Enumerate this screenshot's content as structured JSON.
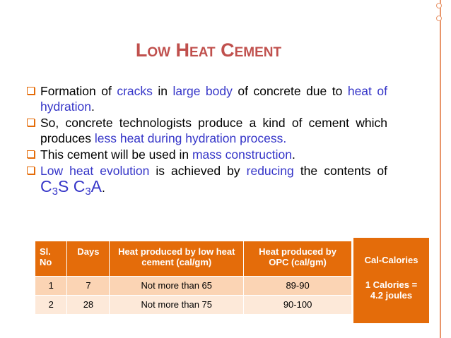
{
  "title": "Low Heat Cement",
  "bullets": [
    {
      "segments": [
        {
          "text": "Formation of "
        },
        {
          "text": "cracks",
          "color": "#3535c8"
        },
        {
          "text": " in "
        },
        {
          "text": "large body",
          "color": "#3535c8"
        },
        {
          "text": " of concrete due to "
        },
        {
          "text": "heat of hydration",
          "color": "#3535c8"
        },
        {
          "text": "."
        }
      ]
    },
    {
      "segments": [
        {
          "text": "So, concrete technologists produce a kind of cement which produces "
        },
        {
          "text": "less heat during hydration process.",
          "color": "#3535c8"
        }
      ]
    },
    {
      "segments": [
        {
          "text": "This cement will be used in "
        },
        {
          "text": "mass construction",
          "color": "#3535c8"
        },
        {
          "text": "."
        }
      ]
    },
    {
      "segments": [
        {
          "text": "Low heat evolution",
          "color": "#3535c8"
        },
        {
          "text": " is achieved by "
        },
        {
          "text": "reducing",
          "color": "#3535c8"
        },
        {
          "text": " the contents of "
        },
        {
          "text": "C",
          "color": "#3535c8",
          "large": true
        },
        {
          "text": "3",
          "color": "#3535c8",
          "large": true,
          "sub": true
        },
        {
          "text": "S C",
          "color": "#3535c8",
          "large": true
        },
        {
          "text": "3",
          "color": "#3535c8",
          "large": true,
          "sub": true
        },
        {
          "text": "A",
          "color": "#3535c8",
          "large": true
        },
        {
          "text": "."
        }
      ]
    }
  ],
  "table": {
    "header": [
      "Sl. No",
      "Days",
      "Heat produced by low heat cement (cal/gm)",
      "Heat produced by OPC (cal/gm)"
    ],
    "rows": [
      [
        "1",
        "7",
        "Not more than 65",
        "89-90"
      ],
      [
        "2",
        "28",
        "Not more than 75",
        "90-100"
      ]
    ]
  },
  "note": {
    "title": "Cal-Calories",
    "text": "1 Calories = 4.2 joules"
  }
}
